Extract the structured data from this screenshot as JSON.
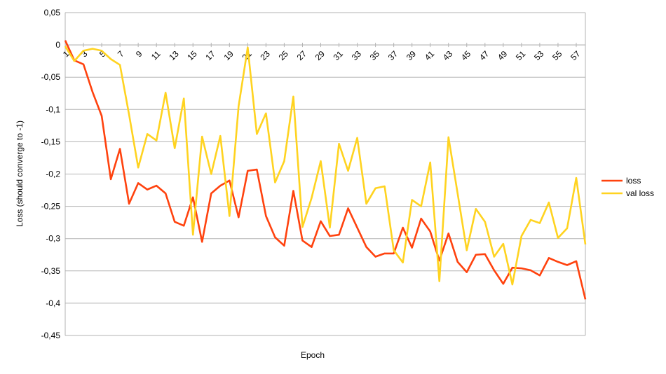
{
  "chart_data": {
    "type": "line",
    "xlabel": "Epoch",
    "ylabel": "Loss (should converge to -1)",
    "ylim": [
      -0.45,
      0.05
    ],
    "yticks": [
      0.05,
      0,
      -0.05,
      -0.1,
      -0.15,
      -0.2,
      -0.25,
      -0.3,
      -0.35,
      -0.4,
      -0.45
    ],
    "ytick_labels": [
      "0,05",
      "0",
      "-0,05",
      "-0,1",
      "-0,15",
      "-0,2",
      "-0,25",
      "-0,3",
      "-0,35",
      "-0,4",
      "-0,45"
    ],
    "x": [
      1,
      2,
      3,
      4,
      5,
      6,
      7,
      8,
      9,
      10,
      11,
      12,
      13,
      14,
      15,
      16,
      17,
      18,
      19,
      20,
      21,
      22,
      23,
      24,
      25,
      26,
      27,
      28,
      29,
      30,
      31,
      32,
      33,
      34,
      35,
      36,
      37,
      38,
      39,
      40,
      41,
      42,
      43,
      44,
      45,
      46,
      47,
      48,
      49,
      50,
      51,
      52,
      53,
      54,
      55,
      56,
      57,
      58
    ],
    "xtick_labels": [
      "1",
      "3",
      "5",
      "7",
      "9",
      "11",
      "13",
      "15",
      "17",
      "19",
      "21",
      "23",
      "25",
      "27",
      "29",
      "31",
      "33",
      "35",
      "37",
      "39",
      "41",
      "43",
      "45",
      "47",
      "49",
      "51",
      "53",
      "55",
      "57"
    ],
    "grid": true,
    "legend_position": "right",
    "series": [
      {
        "name": "loss",
        "color": "#ff420e",
        "values": [
          0.007,
          -0.024,
          -0.03,
          -0.073,
          -0.11,
          -0.208,
          -0.161,
          -0.246,
          -0.214,
          -0.224,
          -0.218,
          -0.23,
          -0.274,
          -0.28,
          -0.236,
          -0.305,
          -0.23,
          -0.218,
          -0.21,
          -0.267,
          -0.195,
          -0.193,
          -0.265,
          -0.298,
          -0.311,
          -0.226,
          -0.303,
          -0.313,
          -0.273,
          -0.296,
          -0.294,
          -0.253,
          -0.283,
          -0.313,
          -0.328,
          -0.323,
          -0.323,
          -0.283,
          -0.314,
          -0.269,
          -0.289,
          -0.334,
          -0.292,
          -0.336,
          -0.352,
          -0.325,
          -0.324,
          -0.349,
          -0.37,
          -0.345,
          -0.346,
          -0.349,
          -0.357,
          -0.33,
          -0.336,
          -0.341,
          -0.335,
          -0.394
        ]
      },
      {
        "name": "val loss",
        "color": "#ffd320",
        "values": [
          -0.002,
          -0.025,
          -0.009,
          -0.006,
          -0.009,
          -0.022,
          -0.031,
          -0.108,
          -0.19,
          -0.138,
          -0.148,
          -0.074,
          -0.16,
          -0.083,
          -0.294,
          -0.142,
          -0.2,
          -0.141,
          -0.265,
          -0.095,
          -0.004,
          -0.138,
          -0.106,
          -0.213,
          -0.18,
          -0.08,
          -0.282,
          -0.237,
          -0.18,
          -0.283,
          -0.153,
          -0.195,
          -0.144,
          -0.246,
          -0.222,
          -0.219,
          -0.318,
          -0.337,
          -0.24,
          -0.25,
          -0.182,
          -0.366,
          -0.143,
          -0.23,
          -0.318,
          -0.254,
          -0.274,
          -0.328,
          -0.308,
          -0.371,
          -0.296,
          -0.271,
          -0.276,
          -0.244,
          -0.299,
          -0.284,
          -0.206,
          -0.309
        ]
      }
    ]
  }
}
